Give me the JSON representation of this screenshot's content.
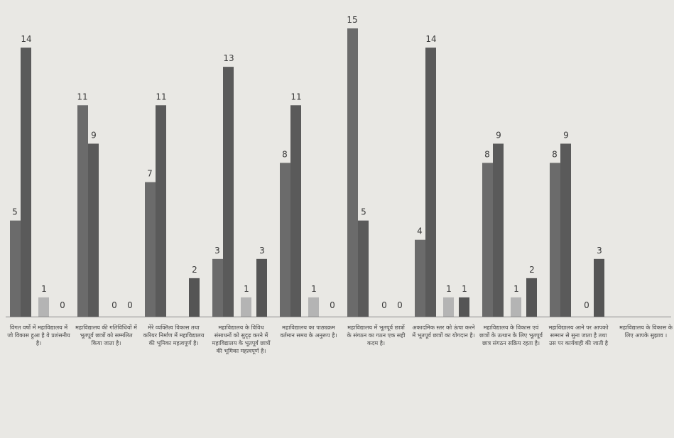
{
  "chart_data": {
    "type": "bar",
    "title": "",
    "xlabel": "",
    "ylabel": "",
    "ylim": [
      0,
      15
    ],
    "grid": false,
    "legend": "none",
    "categories": [
      "विगत वर्षो में महाविद्यालय में जो विकास हुआ है वे प्रशंसनीय है।",
      "महाविद्यालय की गतिविधियों में भूतपूर्व छात्रों को सम्मलित किया जाता है।",
      "मेरे व्यक्तित्व विकास तथा करियर निर्माण में महाविद्यालय की भूमिका महत्वपूर्ण है।",
      "महाविद्यालय के विविध संसाधनों को सुदृढ़ करने में महाविद्यालय के भूतपूर्व छात्रों की भूमिका महत्वपूर्ण है।",
      "महाविद्यालय का पाठ्यक्रम वर्तमान समय के अनुरूप है।",
      "महाविद्यालय में भूतपूर्व छात्रों के संगठन का गठन एक सही कदम है।",
      "अकादमिक स्तर को ऊंचा करने में भूतपूर्व छात्रों का योगदान है।",
      "महाविद्यालय के विकास एवं छात्रों के उत्थान के लिए भूतपूर्व छात्र संगठन सक्रिय रहता है।",
      "महाविद्यालय आने पर आपको सम्मान से सुना जाता है तथा उस पर कार्यवाही की जाती है",
      "महाविद्यालय के विकास के लिए आपके सुझाव ।"
    ],
    "series": [
      {
        "values": [
          5,
          11,
          7,
          3,
          8,
          15,
          4,
          8,
          8,
          null
        ]
      },
      {
        "values": [
          14,
          9,
          11,
          13,
          11,
          5,
          14,
          9,
          9,
          null
        ]
      },
      {
        "values": [
          1,
          0,
          null,
          1,
          1,
          0,
          1,
          1,
          0,
          null
        ]
      },
      {
        "values": [
          0,
          0,
          2,
          3,
          0,
          0,
          1,
          2,
          3,
          null
        ]
      }
    ],
    "colors": [
      "#6b6b6b",
      "#5a5a5a",
      "#b4b4b4",
      "#555555"
    ]
  }
}
